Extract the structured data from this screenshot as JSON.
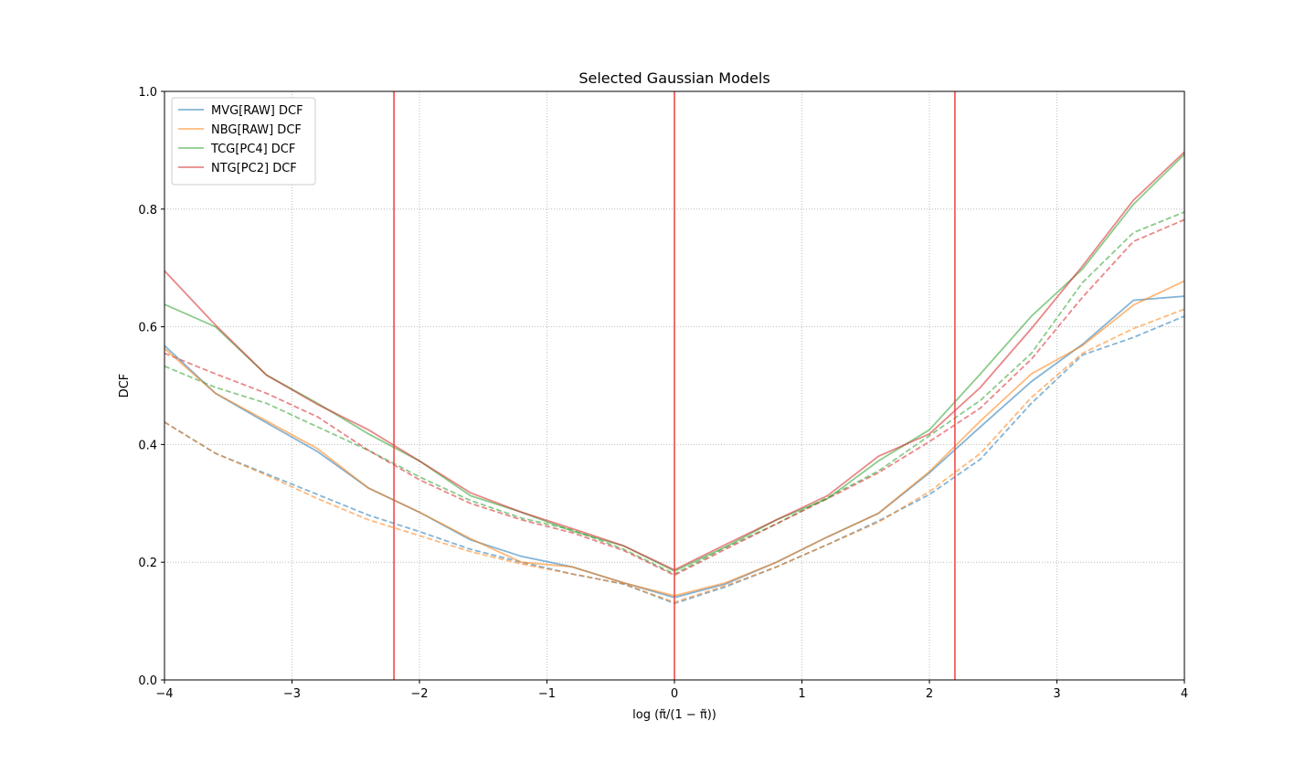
{
  "chart_data": {
    "type": "line",
    "title": "Selected Gaussian Models",
    "xlabel": "log (π̃/(1 − π̃))",
    "ylabel": "DCF",
    "xlim": [
      -4,
      4
    ],
    "ylim": [
      0,
      1
    ],
    "xticks": [
      -4,
      -3,
      -2,
      -1,
      0,
      1,
      2,
      3,
      4
    ],
    "xtick_labels": [
      "−4",
      "−3",
      "−2",
      "−1",
      "0",
      "1",
      "2",
      "3",
      "4"
    ],
    "yticks": [
      0,
      0.2,
      0.4,
      0.6,
      0.8,
      1.0
    ],
    "ytick_labels": [
      "0.0",
      "0.2",
      "0.4",
      "0.6",
      "0.8",
      "1.0"
    ],
    "grid": true,
    "legend_position": "top-left",
    "vlines": {
      "x": [
        -2.2,
        0,
        2.2
      ],
      "color": "#ee4444"
    },
    "x": [
      -4,
      -3.6,
      -3.2,
      -2.8,
      -2.4,
      -2,
      -1.6,
      -1.2,
      -0.8,
      -0.4,
      0,
      0.4,
      0.8,
      1.2,
      1.6,
      2,
      2.4,
      2.8,
      3.2,
      3.6,
      4
    ],
    "series": [
      {
        "name": "MVG[RAW] DCF",
        "color": "#1f77b4",
        "values": [
          0.568,
          0.487,
          0.437,
          0.388,
          0.326,
          0.285,
          0.238,
          0.21,
          0.192,
          0.165,
          0.14,
          0.163,
          0.2,
          0.243,
          0.283,
          0.352,
          0.43,
          0.507,
          0.57,
          0.645,
          0.652
        ]
      },
      {
        "name": "NBG[RAW] DCF",
        "color": "#ff7f0e",
        "values": [
          0.563,
          0.487,
          0.44,
          0.393,
          0.326,
          0.285,
          0.24,
          0.2,
          0.192,
          0.165,
          0.143,
          0.165,
          0.2,
          0.243,
          0.283,
          0.354,
          0.44,
          0.52,
          0.568,
          0.637,
          0.678
        ]
      },
      {
        "name": "TCG[PC4] DCF",
        "color": "#2ca02c",
        "values": [
          0.638,
          0.6,
          0.518,
          0.47,
          0.418,
          0.372,
          0.313,
          0.285,
          0.253,
          0.228,
          0.185,
          0.226,
          0.272,
          0.308,
          0.372,
          0.425,
          0.52,
          0.618,
          0.698,
          0.808,
          0.893
        ]
      },
      {
        "name": "NTG[PC2] DCF",
        "color": "#d62728",
        "values": [
          0.695,
          0.603,
          0.518,
          0.468,
          0.425,
          0.372,
          0.318,
          0.285,
          0.257,
          0.228,
          0.187,
          0.23,
          0.272,
          0.313,
          0.38,
          0.418,
          0.497,
          0.597,
          0.703,
          0.815,
          0.897
        ]
      }
    ],
    "dashed_series": [
      {
        "color": "#1f77b4",
        "values": [
          0.438,
          0.385,
          0.35,
          0.315,
          0.28,
          0.252,
          0.222,
          0.2,
          0.18,
          0.163,
          0.13,
          0.158,
          0.192,
          0.23,
          0.27,
          0.315,
          0.375,
          0.47,
          0.552,
          0.582,
          0.618
        ]
      },
      {
        "color": "#ff7f0e",
        "values": [
          0.438,
          0.385,
          0.348,
          0.308,
          0.272,
          0.245,
          0.218,
          0.197,
          0.18,
          0.163,
          0.132,
          0.16,
          0.192,
          0.23,
          0.268,
          0.32,
          0.385,
          0.48,
          0.555,
          0.597,
          0.63
        ]
      },
      {
        "color": "#2ca02c",
        "values": [
          0.533,
          0.497,
          0.47,
          0.43,
          0.39,
          0.345,
          0.305,
          0.275,
          0.255,
          0.222,
          0.18,
          0.225,
          0.265,
          0.31,
          0.355,
          0.415,
          0.475,
          0.555,
          0.675,
          0.76,
          0.795
        ]
      },
      {
        "color": "#d62728",
        "values": [
          0.555,
          0.52,
          0.487,
          0.447,
          0.39,
          0.34,
          0.3,
          0.272,
          0.25,
          0.22,
          0.178,
          0.222,
          0.265,
          0.308,
          0.352,
          0.405,
          0.462,
          0.545,
          0.65,
          0.745,
          0.782
        ]
      }
    ]
  }
}
